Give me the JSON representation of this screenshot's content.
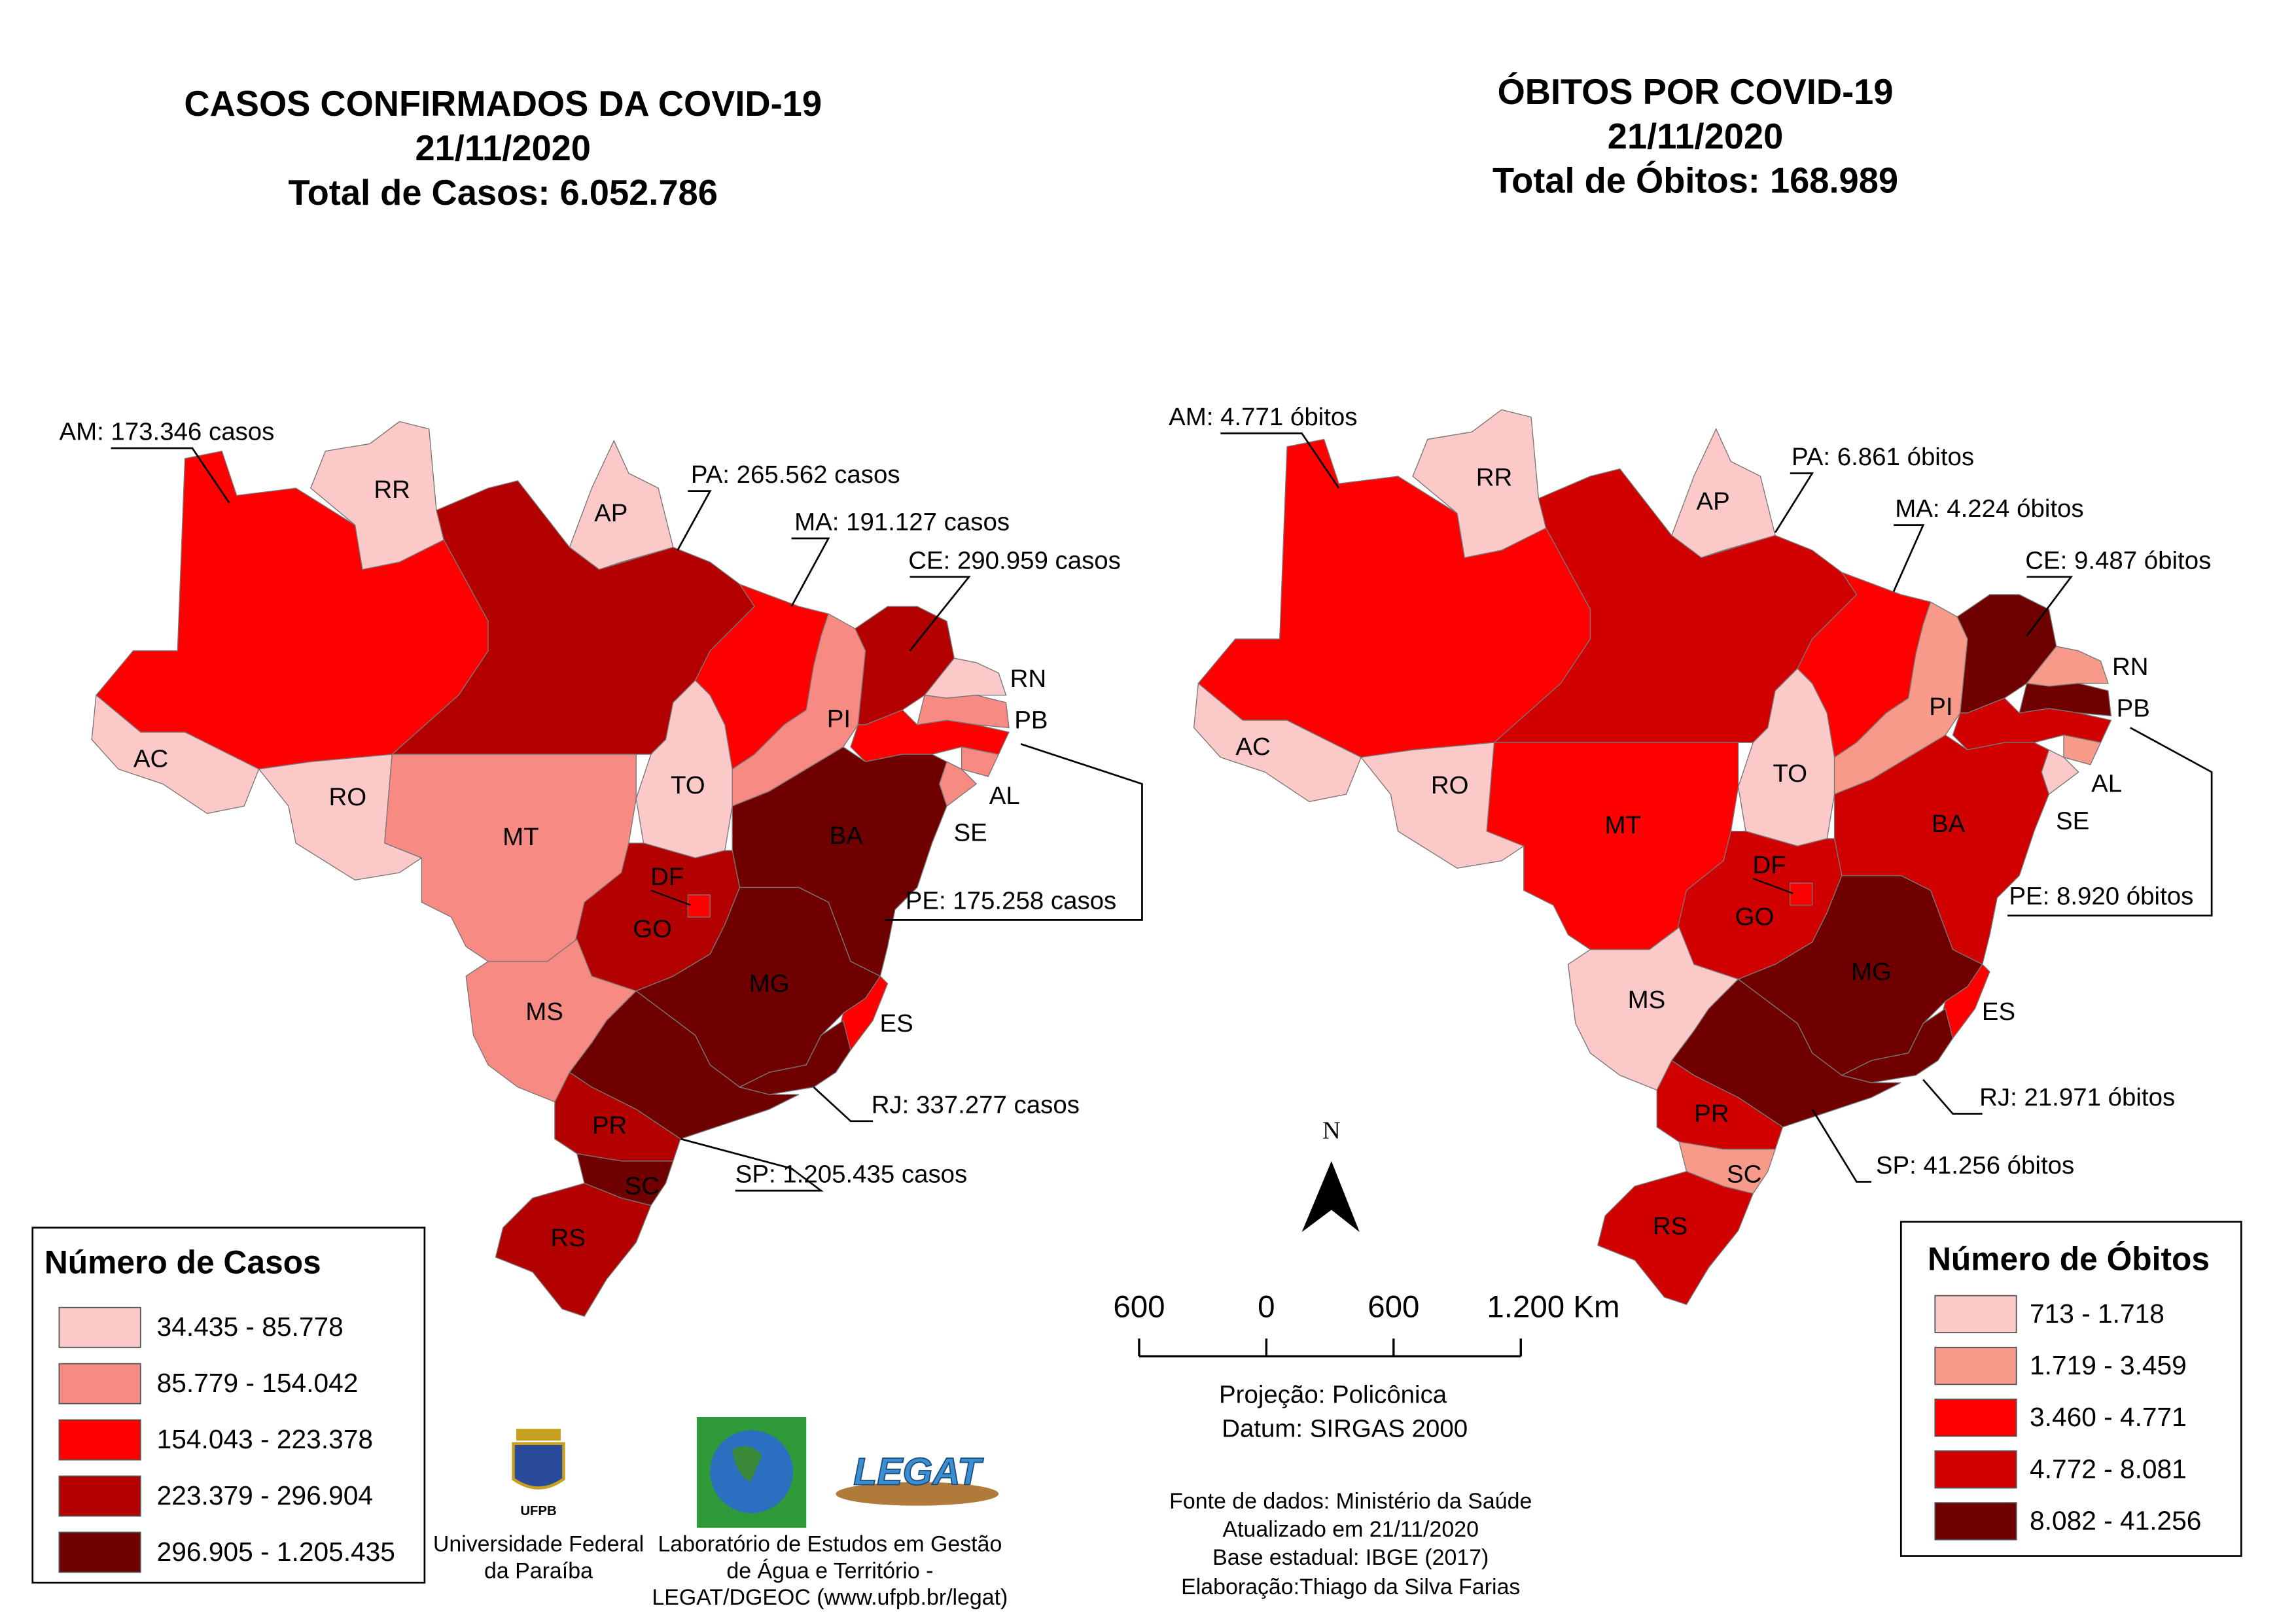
{
  "maps": [
    {
      "title": [
        "CASOS CONFIRMADOS DA COVID-19",
        "21/11/2020",
        "Total de Casos: 6.052.786"
      ],
      "state_labels": [
        "RR",
        "AP",
        "PI",
        "TO",
        "AC",
        "RO",
        "MT",
        "BA",
        "DF",
        "GO",
        "MG",
        "MS",
        "ES",
        "PR",
        "SC",
        "RS",
        "RN",
        "PB",
        "AL",
        "SE"
      ],
      "callouts": [
        "AM: 173.346 casos",
        "PA: 265.562 casos",
        "MA: 191.127 casos",
        "CE: 290.959 casos",
        "PE: 175.258 casos",
        "RJ: 337.277 casos",
        "SP: 1.205.435 casos"
      ],
      "legend": {
        "title": "Número de Casos",
        "items": [
          {
            "label": "34.435 - 85.778",
            "color": "#fcc9c9"
          },
          {
            "label": "85.779 - 154.042",
            "color": "#f88a84"
          },
          {
            "label": "154.043 - 223.378",
            "color": "#fe0000"
          },
          {
            "label": "223.379 - 296.904",
            "color": "#b30000"
          },
          {
            "label": "296.905 - 1.205.435",
            "color": "#700000"
          }
        ]
      }
    },
    {
      "title": [
        "ÓBITOS POR COVID-19",
        "21/11/2020",
        "Total de Óbitos: 168.989"
      ],
      "state_labels": [
        "RR",
        "AP",
        "PI",
        "TO",
        "AC",
        "RO",
        "MT",
        "BA",
        "DF",
        "GO",
        "MG",
        "MS",
        "ES",
        "PR",
        "SC",
        "RS",
        "RN",
        "PB",
        "AL",
        "SE"
      ],
      "callouts": [
        "AM: 4.771 óbitos",
        "PA: 6.861 óbitos",
        "MA: 4.224 óbitos",
        "CE: 9.487 óbitos",
        "PE: 8.920 óbitos",
        "RJ: 21.971 óbitos",
        "SP: 41.256 óbitos"
      ],
      "legend": {
        "title": "Número de Óbitos",
        "items": [
          {
            "label": "713 - 1.718",
            "color": "#fcc9c9"
          },
          {
            "label": "1.719 - 3.459",
            "color": "#f79a8a"
          },
          {
            "label": "3.460 - 4.771",
            "color": "#fe0000"
          },
          {
            "label": "4.772 - 8.081",
            "color": "#d00000"
          },
          {
            "label": "8.082 - 41.256",
            "color": "#700000"
          }
        ]
      }
    }
  ],
  "north_label": "N",
  "scale_bar": {
    "labels": [
      "600",
      "0",
      "600",
      "1.200 Km"
    ]
  },
  "projection": [
    "Projeção: Policônica",
    "Datum: SIRGAS 2000"
  ],
  "source": [
    "Fonte de dados: Ministério da Saúde",
    "Atualizado em 21/11/2020",
    "Base estadual: IBGE (2017)",
    "Elaboração:Thiago da Silva Farias"
  ],
  "logos": {
    "ufpb": {
      "abbr": "UFPB",
      "name": [
        "Universidade Federal",
        "da Paraíba"
      ]
    },
    "legat": {
      "name": "LEGAT",
      "lab": [
        "Laboratório de Estudos em Gestão",
        "de Água e Território -",
        "LEGAT/DGEOC (www.ufpb.br/legat)"
      ]
    }
  }
}
